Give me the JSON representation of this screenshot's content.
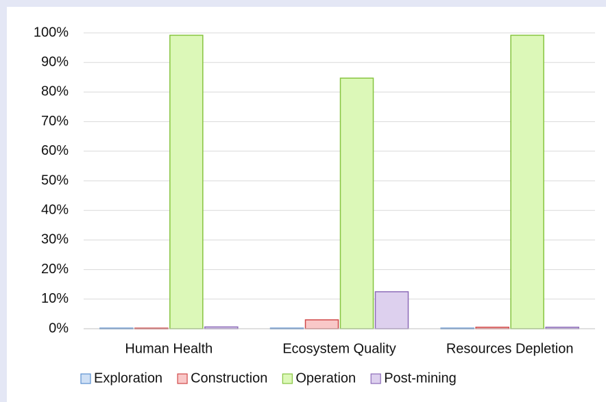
{
  "chart_data": {
    "type": "bar",
    "categories": [
      "Human Health",
      "Ecosystem Quality",
      "Resources Depletion"
    ],
    "series": [
      {
        "name": "Exploration",
        "color": "#cfe0f5",
        "edge_color": "#5b8fd0",
        "values": [
          0.2,
          0.2,
          0.2
        ]
      },
      {
        "name": "Construction",
        "color": "#f9c8c8",
        "edge_color": "#d04848",
        "values": [
          0.2,
          3,
          0.5
        ]
      },
      {
        "name": "Operation",
        "color": "#dcf8b8",
        "edge_color": "#86c43f",
        "values": [
          99.2,
          84.7,
          99.2
        ]
      },
      {
        "name": "Post-mining",
        "color": "#ddd0ee",
        "edge_color": "#8c6bb8",
        "values": [
          0.6,
          12.5,
          0.5
        ]
      }
    ],
    "ylim": [
      0,
      100
    ],
    "yticks": [
      {
        "value": 0,
        "label": "0%"
      },
      {
        "value": 10,
        "label": "10%"
      },
      {
        "value": 20,
        "label": "20%"
      },
      {
        "value": 30,
        "label": "30%"
      },
      {
        "value": 40,
        "label": "40%"
      },
      {
        "value": 50,
        "label": "50%"
      },
      {
        "value": 60,
        "label": "60%"
      },
      {
        "value": 70,
        "label": "70%"
      },
      {
        "value": 80,
        "label": "80%"
      },
      {
        "value": 90,
        "label": "90%"
      },
      {
        "value": 100,
        "label": "100%"
      }
    ],
    "grid": true,
    "legend": "bottom"
  }
}
